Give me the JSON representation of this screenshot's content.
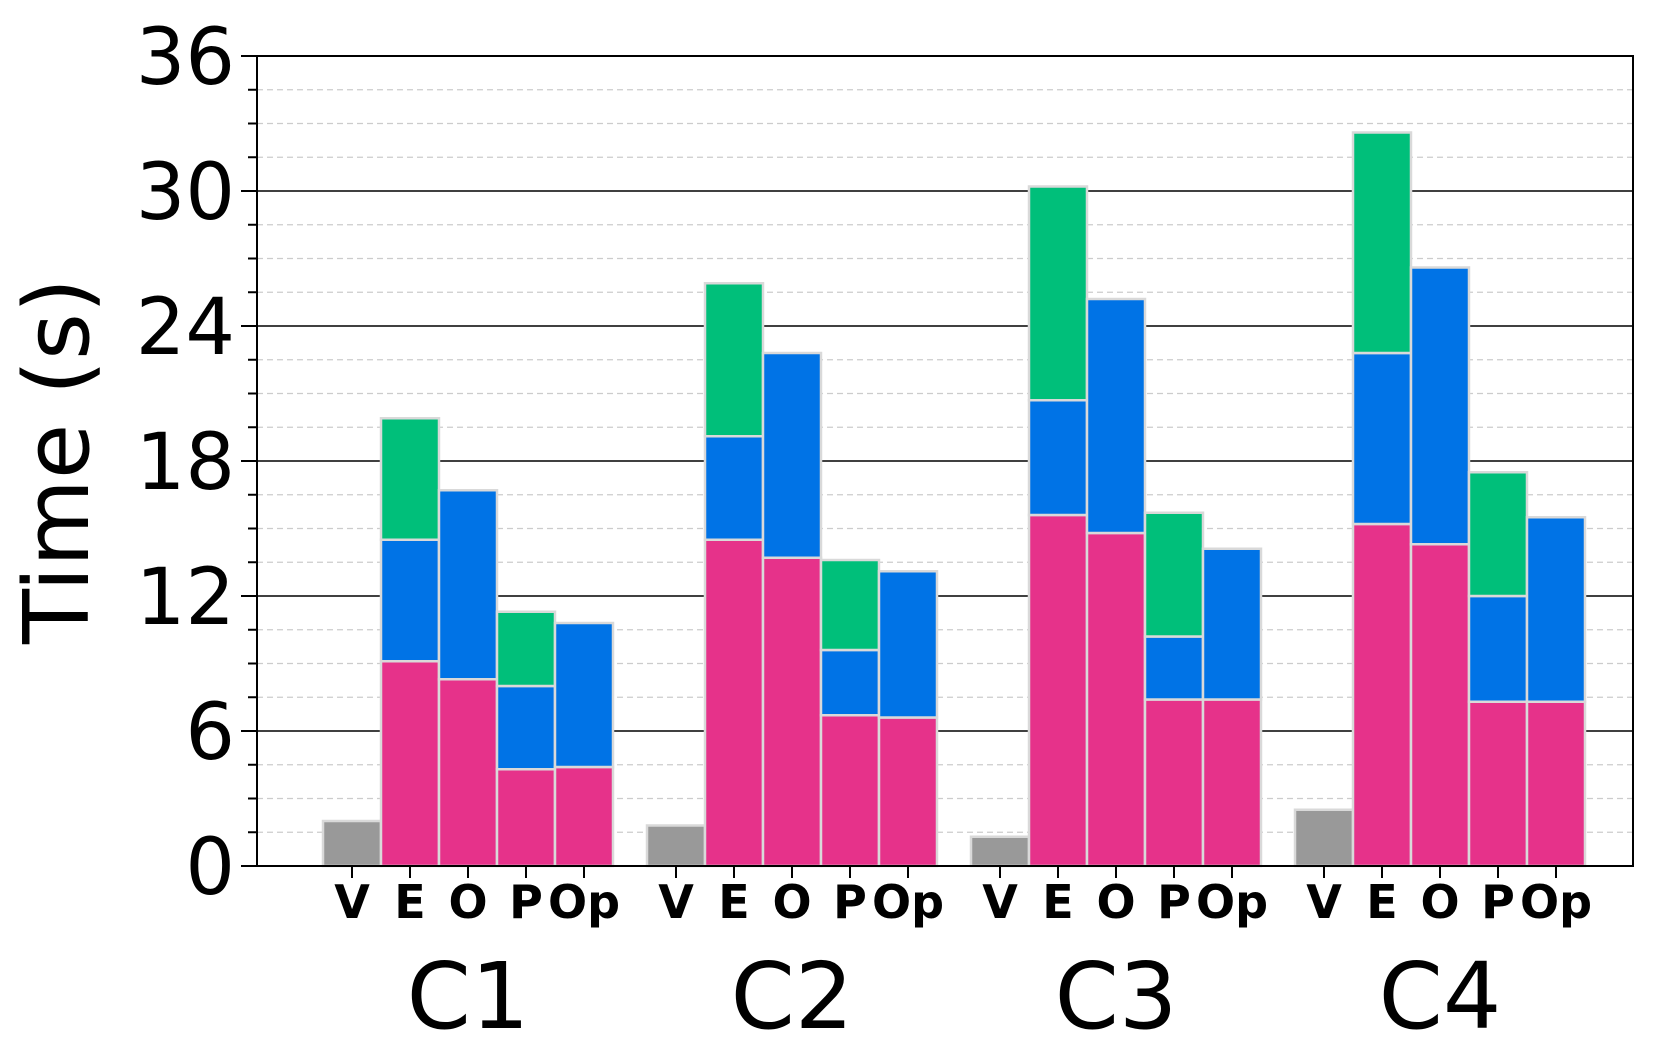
{
  "chart_data": {
    "type": "bar",
    "stacked": true,
    "title": "",
    "xlabel": "",
    "ylabel": "Time (s)",
    "ylim": [
      0,
      36
    ],
    "yticks": [
      "0",
      "6",
      "12",
      "18",
      "24",
      "30",
      "36"
    ],
    "major_grid_step": 6,
    "minor_grid_step": 1.5,
    "groups": [
      "C1",
      "C2",
      "C3",
      "C4"
    ],
    "bar_labels": [
      "V",
      "E",
      "O",
      "P",
      "Op"
    ],
    "colors": {
      "base": "#999999",
      "segment1": "#e6328a",
      "segment2": "#0073e6",
      "segment3": "#00bf7a",
      "edge": "#d9d9d9"
    },
    "bars": [
      [
        {
          "label": "V",
          "segments": [
            2.0
          ]
        },
        {
          "label": "E",
          "segments": [
            9.1,
            5.4,
            5.4
          ]
        },
        {
          "label": "O",
          "segments": [
            8.3,
            8.4
          ]
        },
        {
          "label": "P",
          "segments": [
            4.3,
            3.7,
            3.3
          ]
        },
        {
          "label": "Op",
          "segments": [
            4.4,
            6.4
          ]
        }
      ],
      [
        {
          "label": "V",
          "segments": [
            1.8
          ]
        },
        {
          "label": "E",
          "segments": [
            14.5,
            4.6,
            6.8
          ]
        },
        {
          "label": "O",
          "segments": [
            13.7,
            9.1
          ]
        },
        {
          "label": "P",
          "segments": [
            6.7,
            2.9,
            4.0
          ]
        },
        {
          "label": "Op",
          "segments": [
            6.6,
            6.5
          ]
        }
      ],
      [
        {
          "label": "V",
          "segments": [
            1.3
          ]
        },
        {
          "label": "E",
          "segments": [
            15.6,
            5.1,
            9.5
          ]
        },
        {
          "label": "O",
          "segments": [
            14.8,
            10.4
          ]
        },
        {
          "label": "P",
          "segments": [
            7.4,
            2.8,
            5.5
          ]
        },
        {
          "label": "Op",
          "segments": [
            7.4,
            6.7
          ]
        }
      ],
      [
        {
          "label": "V",
          "segments": [
            2.5
          ]
        },
        {
          "label": "E",
          "segments": [
            15.2,
            7.6,
            9.8
          ]
        },
        {
          "label": "O",
          "segments": [
            14.3,
            12.3
          ]
        },
        {
          "label": "P",
          "segments": [
            7.3,
            4.7,
            5.5
          ]
        },
        {
          "label": "Op",
          "segments": [
            7.3,
            8.2
          ]
        }
      ]
    ]
  }
}
